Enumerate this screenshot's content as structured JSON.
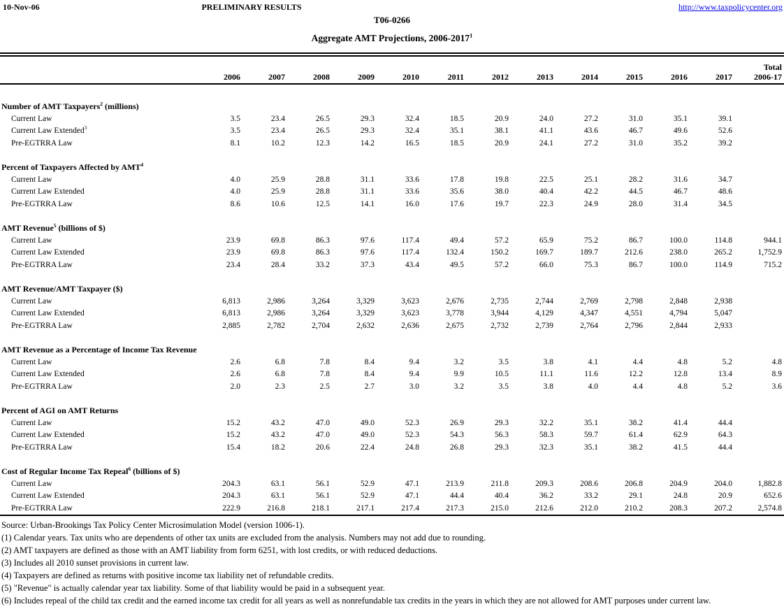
{
  "page": {
    "date": "10-Nov-06",
    "banner": "PRELIMINARY RESULTS",
    "url": "http://www.taxpolicycenter.org",
    "doc_id": "T06-0266",
    "title": "Aggregate AMT Projections, 2006-2017",
    "title_sup": "1",
    "link_color": "#0000EE",
    "text_color": "#000000",
    "background_color": "#FFFFFF"
  },
  "table": {
    "year_headers": [
      "2006",
      "2007",
      "2008",
      "2009",
      "2010",
      "2011",
      "2012",
      "2013",
      "2014",
      "2015",
      "2016",
      "2017"
    ],
    "total_header_line1": "Total",
    "total_header_line2": "2006-17",
    "sections": [
      {
        "title": "Number of AMT Taxpayers",
        "sup": "2",
        "suffix": " (millions)",
        "rows": [
          {
            "label": "Current Law",
            "sup": "",
            "values": [
              "3.5",
              "23.4",
              "26.5",
              "29.3",
              "32.4",
              "18.5",
              "20.9",
              "24.0",
              "27.2",
              "31.0",
              "35.1",
              "39.1"
            ],
            "total": ""
          },
          {
            "label": "Current Law Extended",
            "sup": "3",
            "values": [
              "3.5",
              "23.4",
              "26.5",
              "29.3",
              "32.4",
              "35.1",
              "38.1",
              "41.1",
              "43.6",
              "46.7",
              "49.6",
              "52.6"
            ],
            "total": ""
          },
          {
            "label": "Pre-EGTRRA Law",
            "sup": "",
            "values": [
              "8.1",
              "10.2",
              "12.3",
              "14.2",
              "16.5",
              "18.5",
              "20.9",
              "24.1",
              "27.2",
              "31.0",
              "35.2",
              "39.2"
            ],
            "total": ""
          }
        ]
      },
      {
        "title": "Percent of Taxpayers Affected by AMT",
        "sup": "4",
        "suffix": "",
        "rows": [
          {
            "label": "Current Law",
            "sup": "",
            "values": [
              "4.0",
              "25.9",
              "28.8",
              "31.1",
              "33.6",
              "17.8",
              "19.8",
              "22.5",
              "25.1",
              "28.2",
              "31.6",
              "34.7"
            ],
            "total": ""
          },
          {
            "label": "Current Law Extended",
            "sup": "",
            "values": [
              "4.0",
              "25.9",
              "28.8",
              "31.1",
              "33.6",
              "35.6",
              "38.0",
              "40.4",
              "42.2",
              "44.5",
              "46.7",
              "48.6"
            ],
            "total": ""
          },
          {
            "label": "Pre-EGTRRA Law",
            "sup": "",
            "values": [
              "8.6",
              "10.6",
              "12.5",
              "14.1",
              "16.0",
              "17.6",
              "19.7",
              "22.3",
              "24.9",
              "28.0",
              "31.4",
              "34.5"
            ],
            "total": ""
          }
        ]
      },
      {
        "title": "AMT Revenue",
        "sup": "5",
        "suffix": " (billions of $)",
        "rows": [
          {
            "label": "Current Law",
            "sup": "",
            "values": [
              "23.9",
              "69.8",
              "86.3",
              "97.6",
              "117.4",
              "49.4",
              "57.2",
              "65.9",
              "75.2",
              "86.7",
              "100.0",
              "114.8"
            ],
            "total": "944.1"
          },
          {
            "label": "Current Law Extended",
            "sup": "",
            "values": [
              "23.9",
              "69.8",
              "86.3",
              "97.6",
              "117.4",
              "132.4",
              "150.2",
              "169.7",
              "189.7",
              "212.6",
              "238.0",
              "265.2"
            ],
            "total": "1,752.9"
          },
          {
            "label": "Pre-EGTRRA Law",
            "sup": "",
            "values": [
              "23.4",
              "28.4",
              "33.2",
              "37.3",
              "43.4",
              "49.5",
              "57.2",
              "66.0",
              "75.3",
              "86.7",
              "100.0",
              "114.9"
            ],
            "total": "715.2"
          }
        ]
      },
      {
        "title": "AMT Revenue/AMT Taxpayer ($)",
        "sup": "",
        "suffix": "",
        "rows": [
          {
            "label": "Current Law",
            "sup": "",
            "values": [
              "6,813",
              "2,986",
              "3,264",
              "3,329",
              "3,623",
              "2,676",
              "2,735",
              "2,744",
              "2,769",
              "2,798",
              "2,848",
              "2,938"
            ],
            "total": ""
          },
          {
            "label": "Current Law Extended",
            "sup": "",
            "values": [
              "6,813",
              "2,986",
              "3,264",
              "3,329",
              "3,623",
              "3,778",
              "3,944",
              "4,129",
              "4,347",
              "4,551",
              "4,794",
              "5,047"
            ],
            "total": ""
          },
          {
            "label": "Pre-EGTRRA Law",
            "sup": "",
            "values": [
              "2,885",
              "2,782",
              "2,704",
              "2,632",
              "2,636",
              "2,675",
              "2,732",
              "2,739",
              "2,764",
              "2,796",
              "2,844",
              "2,933"
            ],
            "total": ""
          }
        ]
      },
      {
        "title": "AMT Revenue as a Percentage of Income Tax Revenue",
        "sup": "",
        "suffix": "",
        "rows": [
          {
            "label": "Current Law",
            "sup": "",
            "values": [
              "2.6",
              "6.8",
              "7.8",
              "8.4",
              "9.4",
              "3.2",
              "3.5",
              "3.8",
              "4.1",
              "4.4",
              "4.8",
              "5.2"
            ],
            "total": "4.8"
          },
          {
            "label": "Current Law Extended",
            "sup": "",
            "values": [
              "2.6",
              "6.8",
              "7.8",
              "8.4",
              "9.4",
              "9.9",
              "10.5",
              "11.1",
              "11.6",
              "12.2",
              "12.8",
              "13.4"
            ],
            "total": "8.9"
          },
          {
            "label": "Pre-EGTRRA Law",
            "sup": "",
            "values": [
              "2.0",
              "2.3",
              "2.5",
              "2.7",
              "3.0",
              "3.2",
              "3.5",
              "3.8",
              "4.0",
              "4.4",
              "4.8",
              "5.2"
            ],
            "total": "3.6"
          }
        ]
      },
      {
        "title": "Percent of AGI on AMT Returns",
        "sup": "",
        "suffix": "",
        "rows": [
          {
            "label": "Current Law",
            "sup": "",
            "values": [
              "15.2",
              "43.2",
              "47.0",
              "49.0",
              "52.3",
              "26.9",
              "29.3",
              "32.2",
              "35.1",
              "38.2",
              "41.4",
              "44.4"
            ],
            "total": ""
          },
          {
            "label": "Current Law Extended",
            "sup": "",
            "values": [
              "15.2",
              "43.2",
              "47.0",
              "49.0",
              "52.3",
              "54.3",
              "56.3",
              "58.3",
              "59.7",
              "61.4",
              "62.9",
              "64.3"
            ],
            "total": ""
          },
          {
            "label": "Pre-EGTRRA Law",
            "sup": "",
            "values": [
              "15.4",
              "18.2",
              "20.6",
              "22.4",
              "24.8",
              "26.8",
              "29.3",
              "32.3",
              "35.1",
              "38.2",
              "41.5",
              "44.4"
            ],
            "total": ""
          }
        ]
      },
      {
        "title": "Cost of Regular Income Tax Repeal",
        "sup": "6",
        "suffix": " (billions of $)",
        "rows": [
          {
            "label": "Current Law",
            "sup": "",
            "values": [
              "204.3",
              "63.1",
              "56.1",
              "52.9",
              "47.1",
              "213.9",
              "211.8",
              "209.3",
              "208.6",
              "206.8",
              "204.9",
              "204.0"
            ],
            "total": "1,882.8"
          },
          {
            "label": "Current Law Extended",
            "sup": "",
            "values": [
              "204.3",
              "63.1",
              "56.1",
              "52.9",
              "47.1",
              "44.4",
              "40.4",
              "36.2",
              "33.2",
              "29.1",
              "24.8",
              "20.9"
            ],
            "total": "652.6"
          },
          {
            "label": "Pre-EGTRRA Law",
            "sup": "",
            "values": [
              "222.9",
              "216.8",
              "218.1",
              "217.1",
              "217.4",
              "217.3",
              "215.0",
              "212.6",
              "212.0",
              "210.2",
              "208.3",
              "207.2"
            ],
            "total": "2,574.8"
          }
        ]
      }
    ]
  },
  "footnotes": {
    "source": "Source: Urban-Brookings Tax Policy Center Microsimulation Model (version 1006-1).",
    "items": [
      "(1) Calendar years. Tax units who are dependents of other tax units are excluded from the analysis. Numbers may not add due to rounding.",
      "(2) AMT taxpayers are defined as those with an AMT liability from form 6251, with lost credits, or with reduced deductions.",
      "(3) Includes all 2010 sunset provisions in current law.",
      "(4) Taxpayers are defined as returns with positive income tax liability net of refundable credits.",
      "(5) \"Revenue\" is actually calendar year tax liability.  Some of that liability would be paid in a subsequent year.",
      "(6) Includes repeal of the child tax credit and the earned income tax credit for all years as well as nonrefundable tax credits in the years in which they are not allowed for AMT purposes under current law."
    ]
  }
}
